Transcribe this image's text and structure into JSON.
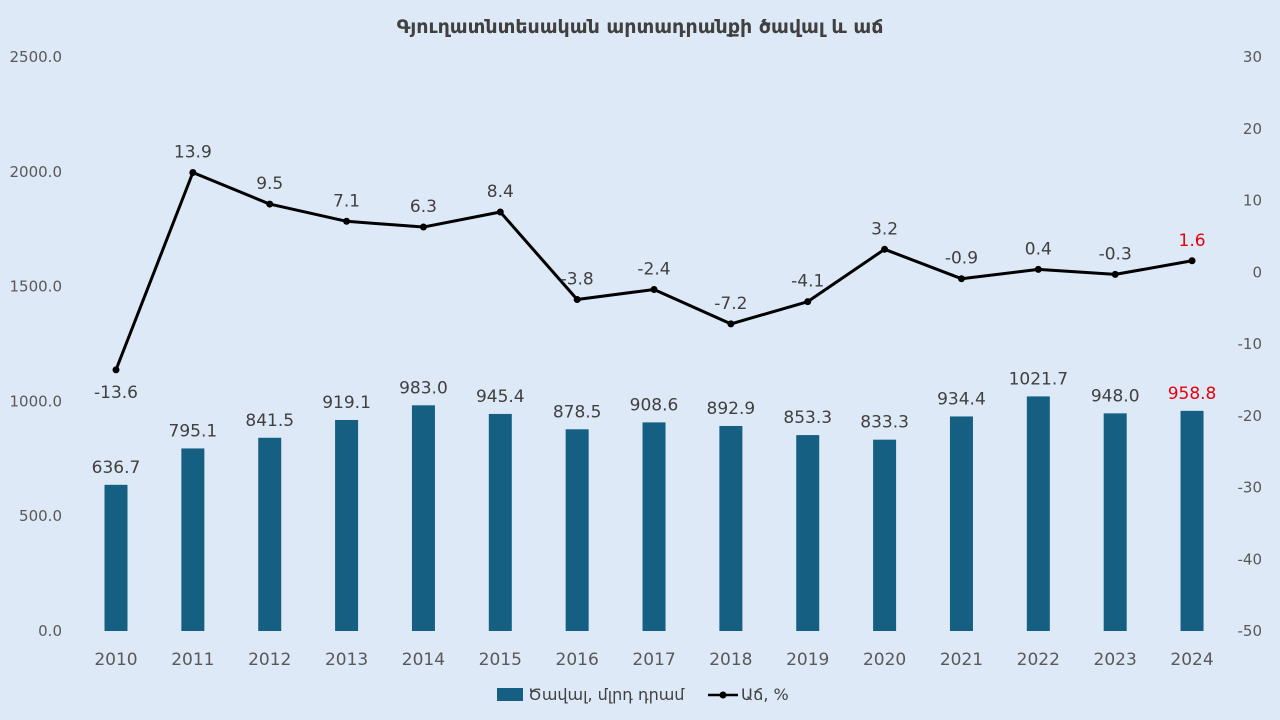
{
  "chart_data": {
    "type": "bar+line",
    "title": "Գյուղատնտեսական  արտադրանքի ծավալ և աճ",
    "categories": [
      "2010",
      "2011",
      "2012",
      "2013",
      "2014",
      "2015",
      "2016",
      "2017",
      "2018",
      "2019",
      "2020",
      "2021",
      "2022",
      "2023",
      "2024"
    ],
    "series": [
      {
        "name": "Ծավալ, մլրդ դրամ",
        "type": "bar",
        "axis": "left",
        "color": "#156082",
        "values": [
          636.7,
          795.1,
          841.5,
          919.1,
          983.0,
          945.4,
          878.5,
          908.6,
          892.9,
          853.3,
          833.3,
          934.4,
          1021.7,
          948.0,
          958.8
        ],
        "labels": [
          "636.7",
          "795.1",
          "841.5",
          "919.1",
          "983.0",
          "945.4",
          "878.5",
          "908.6",
          "892.9",
          "853.3",
          "833.3",
          "934.4",
          "1021.7",
          "948.0",
          "958.8"
        ]
      },
      {
        "name": "Աճ, %",
        "type": "line",
        "axis": "right",
        "color": "#000000",
        "values": [
          -13.6,
          13.9,
          9.5,
          7.1,
          6.3,
          8.4,
          -3.8,
          -2.4,
          -7.2,
          -4.1,
          3.2,
          -0.9,
          0.4,
          -0.3,
          1.6
        ],
        "labels": [
          "-13.6",
          "13.9",
          "9.5",
          "7.1",
          "6.3",
          "8.4",
          "-3.8",
          "-2.4",
          "-7.2",
          "-4.1",
          "3.2",
          "-0.9",
          "0.4",
          "-0.3",
          "1.6"
        ]
      }
    ],
    "highlight_color": "#e8000b",
    "highlight_index": 14,
    "y_left": {
      "min": 0,
      "max": 2500,
      "step": 500,
      "ticks": [
        "0.0",
        "500.0",
        "1000.0",
        "1500.0",
        "2000.0",
        "2500.0"
      ]
    },
    "y_right": {
      "min": -50,
      "max": 30,
      "step": 10,
      "ticks": [
        "-50",
        "-40",
        "-30",
        "-20",
        "-10",
        "0",
        "10",
        "20",
        "30"
      ]
    },
    "grid": false,
    "legend": "bottom"
  }
}
